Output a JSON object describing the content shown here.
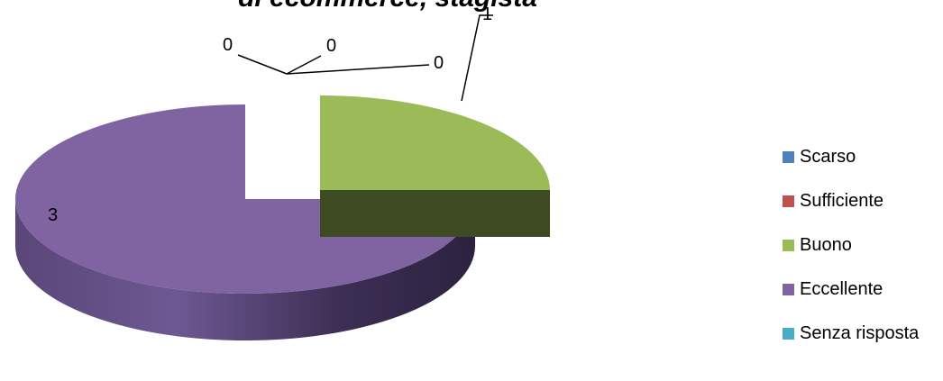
{
  "chart_data": {
    "type": "pie",
    "title": "di ecommerce, stagista",
    "categories": [
      "Scarso",
      "Sufficiente",
      "Buono",
      "Eccellente",
      "Senza risposta"
    ],
    "values": [
      0,
      0,
      1,
      3,
      0
    ],
    "data_labels": [
      "0",
      "0",
      "1",
      "3",
      "0"
    ],
    "legend": {
      "position": "right",
      "entries": [
        "Scarso",
        "Sufficiente",
        "Buono",
        "Eccellente",
        "Senza risposta"
      ]
    },
    "colors": [
      "#4F81BD",
      "#C0504D",
      "#9BBB59",
      "#8064A2",
      "#4BACC6"
    ],
    "style": "3d-exploded"
  }
}
